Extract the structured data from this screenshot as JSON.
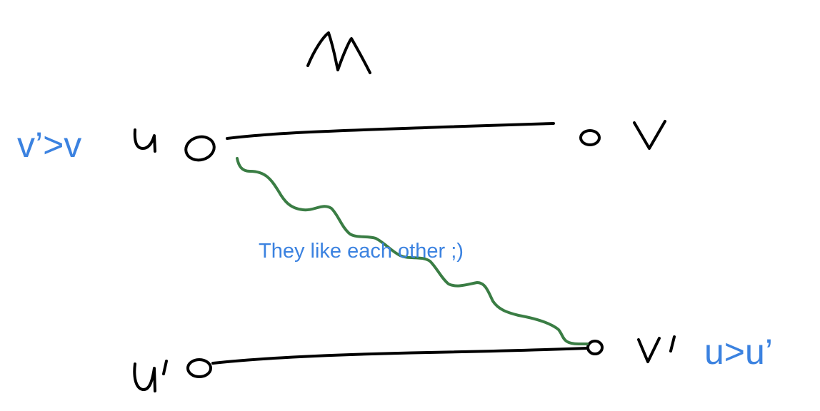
{
  "diagram": {
    "matching_label": "M",
    "nodes": {
      "u": "u",
      "v": "v",
      "u_prime": "u'",
      "v_prime": "v'"
    },
    "annotations": {
      "left_preference": "v’>v",
      "right_preference": "u>u’",
      "relation": "They like each other ;)"
    },
    "colors": {
      "ink": "#000000",
      "relation_line": "#3a7d44",
      "annotation": "#3b82e0"
    }
  }
}
